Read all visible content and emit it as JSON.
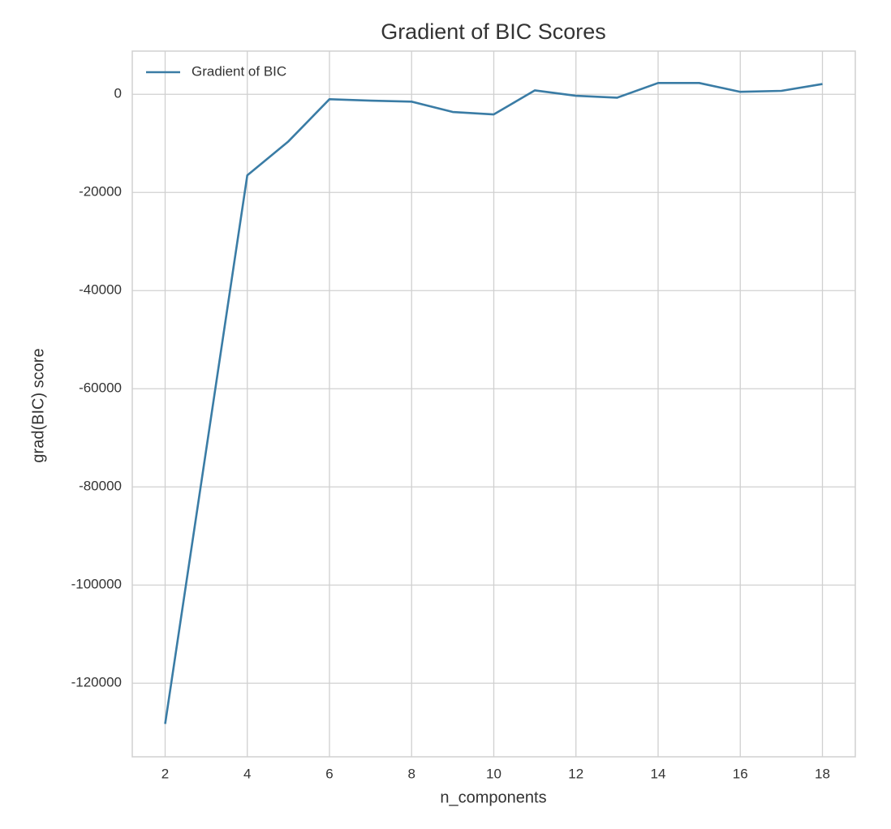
{
  "chart_data": {
    "type": "line",
    "title": "Gradient of BIC Scores",
    "x_label": "n_components",
    "y_label": "grad(BIC) score",
    "x": [
      2,
      3,
      4,
      5,
      6,
      7,
      8,
      9,
      10,
      11,
      12,
      13,
      14,
      15,
      16,
      17,
      18
    ],
    "series": [
      {
        "name": "Gradient of BIC",
        "color": "#3a7ca5",
        "values": [
          -128300,
          -72400,
          -16500,
          -9600,
          -1000,
          -1300,
          -1500,
          -3600,
          -4100,
          800,
          -300,
          -700,
          2300,
          2300,
          500,
          700,
          2100
        ]
      }
    ],
    "xlim": [
      1.2,
      18.8
    ],
    "xticks": [
      2,
      4,
      6,
      8,
      10,
      12,
      14,
      16,
      18
    ],
    "ylim": [
      -135000,
      8800
    ],
    "yticks": [
      0,
      -20000,
      -40000,
      -60000,
      -80000,
      -100000,
      -120000
    ],
    "grid": true,
    "legend": "upper left"
  }
}
